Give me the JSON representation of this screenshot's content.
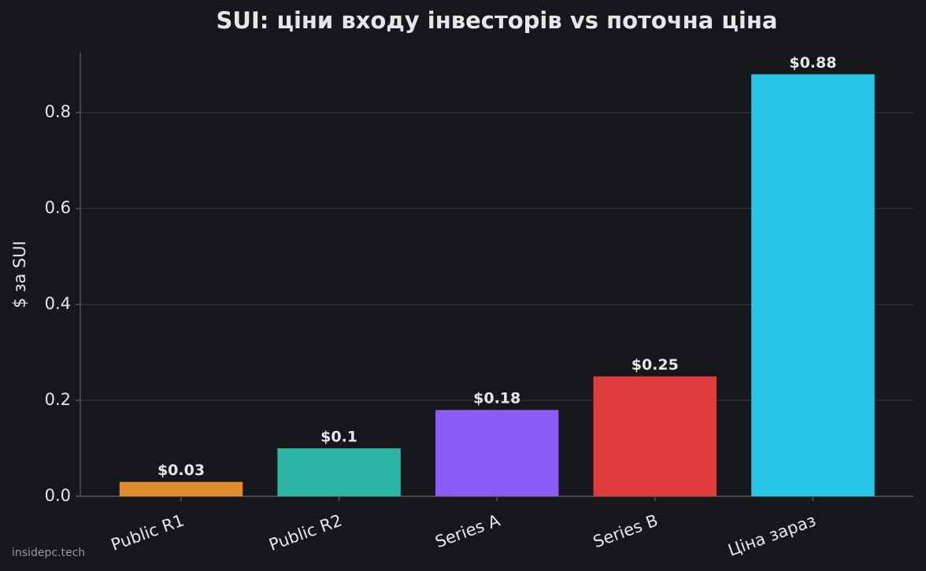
{
  "chart_data": {
    "type": "bar",
    "title": "SUI: ціни входу інвесторів vs поточна ціна",
    "y_label": "$ за SUI",
    "categories": [
      "Public R1",
      "Public R2",
      "Series A",
      "Series B",
      "Ціна зараз"
    ],
    "values": [
      0.03,
      0.1,
      0.18,
      0.25,
      0.88
    ],
    "value_labels": [
      "$0.03",
      "$0.1",
      "$0.18",
      "$0.25",
      "$0.88"
    ],
    "colors": [
      "#e08c2c",
      "#2bb5a3",
      "#8b5cf6",
      "#e03c3c",
      "#27c6e6"
    ],
    "ylim": [
      0,
      0.925
    ],
    "yticks": [
      {
        "value": 0,
        "label": "0.0"
      },
      0.2,
      0.4,
      0.6,
      0.8
    ],
    "grid": true,
    "watermark": "insidepc.tech"
  }
}
